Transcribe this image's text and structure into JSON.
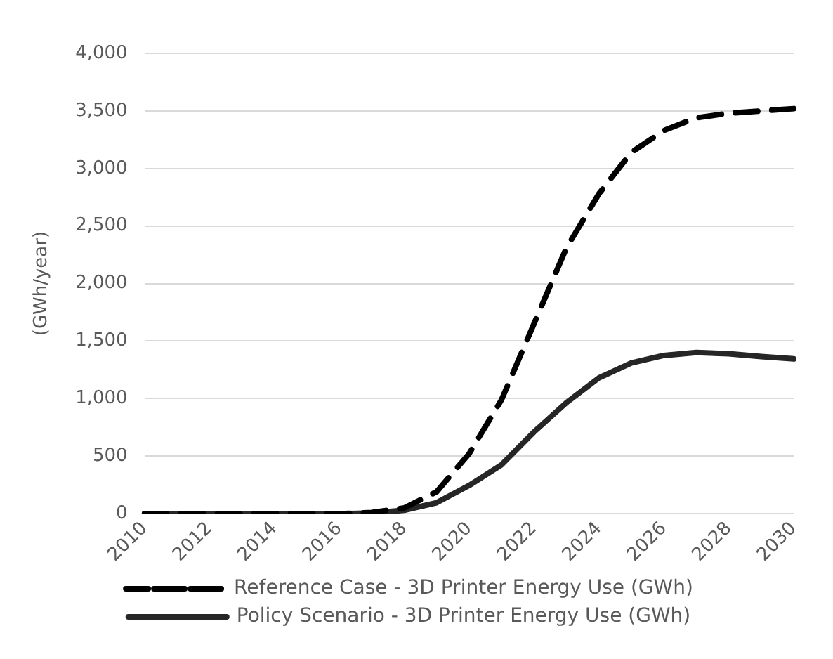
{
  "chart_data": {
    "type": "line",
    "ylabel": "(GWh/year)",
    "categories": [
      "2010",
      null,
      "2012",
      null,
      "2014",
      null,
      "2016",
      null,
      "2018",
      null,
      "2020",
      null,
      "2022",
      null,
      "2024",
      null,
      "2026",
      null,
      "2028",
      null,
      "2030"
    ],
    "series": [
      {
        "name": "Reference Case - 3D Printer Energy Use (GWh)",
        "color": "#000000",
        "line_style": "dashed",
        "values": [
          0,
          0,
          0,
          0,
          0,
          0,
          0,
          10,
          50,
          190,
          520,
          990,
          1650,
          2310,
          2780,
          3140,
          3330,
          3440,
          3480,
          3500,
          3520
        ]
      },
      {
        "name": "Policy Scenario - 3D Printer Energy Use (GWh)",
        "color": "#262626",
        "line_style": "solid",
        "values": [
          0,
          0,
          0,
          0,
          0,
          0,
          0,
          5,
          30,
          95,
          245,
          425,
          710,
          965,
          1180,
          1310,
          1375,
          1400,
          1390,
          1365,
          1345
        ]
      }
    ],
    "ylim": [
      0,
      4000
    ],
    "yticks": [
      {
        "value": 0,
        "label": "0"
      },
      {
        "value": 500,
        "label": "500"
      },
      {
        "value": 1000,
        "label": "1,000"
      },
      {
        "value": 1500,
        "label": "1,500"
      },
      {
        "value": 2000,
        "label": "2,000"
      },
      {
        "value": 2500,
        "label": "2,500"
      },
      {
        "value": 3000,
        "label": "3,000"
      },
      {
        "value": 3500,
        "label": "3,500"
      },
      {
        "value": 4000,
        "label": "4,000"
      }
    ],
    "grid": "y",
    "legend": "bottom",
    "marker": "none"
  }
}
